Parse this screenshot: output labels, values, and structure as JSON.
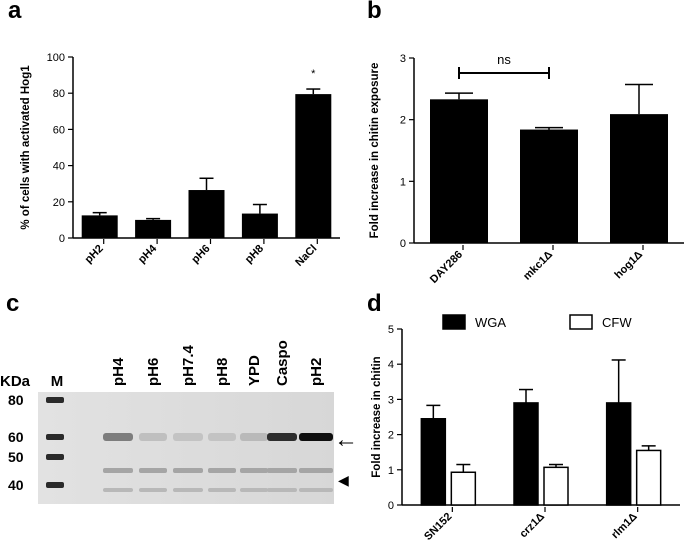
{
  "panels": {
    "a": "a",
    "b": "b",
    "c": "c",
    "d": "d"
  },
  "chart_data": [
    {
      "panel": "a",
      "type": "bar",
      "categories": [
        "pH2",
        "pH4",
        "pH6",
        "pH8",
        "NaCl"
      ],
      "values": [
        12.5,
        10,
        26.5,
        13.5,
        79.5
      ],
      "errors": [
        1.5,
        0.7,
        6.5,
        5,
        2.8
      ],
      "ylabel": "% of cells with activated Hog1",
      "ylim": [
        0,
        100
      ],
      "yticks": [
        0,
        20,
        40,
        60,
        80,
        100
      ],
      "annotations": [
        {
          "category": "NaCl",
          "text": "*"
        }
      ],
      "bar_color": "#000000"
    },
    {
      "panel": "b",
      "type": "bar",
      "categories": [
        "DAY286",
        "mkc1Δ",
        "hog1Δ"
      ],
      "values": [
        2.33,
        1.84,
        2.09
      ],
      "errors": [
        0.1,
        0.03,
        0.48
      ],
      "ylabel": "Fold increase in chitin exposure",
      "ylim": [
        0,
        3
      ],
      "yticks": [
        0,
        1,
        2,
        3
      ],
      "bracket": {
        "from": "DAY286",
        "to": "mkc1Δ",
        "text": "ns"
      },
      "bar_color": "#000000"
    },
    {
      "panel": "d",
      "type": "bar",
      "categories": [
        "SN152",
        "crz1Δ",
        "rlm1Δ"
      ],
      "series": [
        {
          "name": "WGA",
          "values": [
            2.45,
            2.9,
            2.9
          ],
          "errors": [
            0.38,
            0.38,
            1.22
          ],
          "color": "#000000"
        },
        {
          "name": "CFW",
          "values": [
            0.93,
            1.07,
            1.55
          ],
          "errors": [
            0.22,
            0.08,
            0.13
          ],
          "color": "#ffffff"
        }
      ],
      "ylabel": "Fold increase in chitin",
      "ylim": [
        0,
        5
      ],
      "yticks": [
        0,
        1,
        2,
        3,
        4,
        5
      ],
      "legend": "top"
    }
  ],
  "blot": {
    "lanes": [
      "M",
      "pH4",
      "pH6",
      "pH7.4",
      "pH8",
      "YPD",
      "Caspo",
      "pH2"
    ],
    "unit_label": "KDa",
    "markers": [
      "80",
      "60",
      "50",
      "40"
    ],
    "arrow_glyph": "←",
    "arrowhead_glyph": "◀",
    "band_intensity_60kDa": [
      0.9,
      0.45,
      0.12,
      0.1,
      0.1,
      0.15,
      0.85,
      1.0
    ]
  }
}
